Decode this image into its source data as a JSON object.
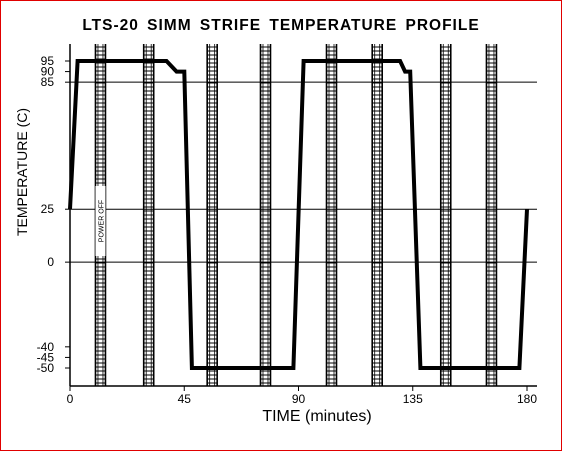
{
  "chart_data": {
    "type": "line",
    "title": "LTS-20  SIMM  STRIFE  TEMPERATURE  PROFILE",
    "xlabel": "TIME (minutes)",
    "ylabel": "TEMPERATURE (C)",
    "xlim": [
      0,
      180
    ],
    "ylim": [
      -50,
      95
    ],
    "x_ticks": [
      0,
      45,
      90,
      135,
      180
    ],
    "y_ticks": [
      95,
      90,
      85,
      25,
      0,
      -40,
      -45,
      -50
    ],
    "y_gridlines": [
      85,
      25,
      0
    ],
    "grid": "horizontal gridlines at 85, 25 and 0",
    "series": [
      {
        "x": [
          0,
          3,
          38,
          42,
          45,
          48,
          88,
          92,
          130,
          132,
          134,
          138,
          177,
          180
        ],
        "y": [
          25,
          95,
          95,
          90,
          90,
          -50,
          -50,
          95,
          95,
          90,
          90,
          -50,
          -50,
          25
        ]
      }
    ],
    "shaded_bands": [
      12,
      31,
      56,
      77,
      103,
      121,
      148,
      166
    ],
    "annotation": "POWER OFF"
  },
  "colors": {
    "frame": "#e00000",
    "line": "#000000",
    "band": "#000000"
  }
}
